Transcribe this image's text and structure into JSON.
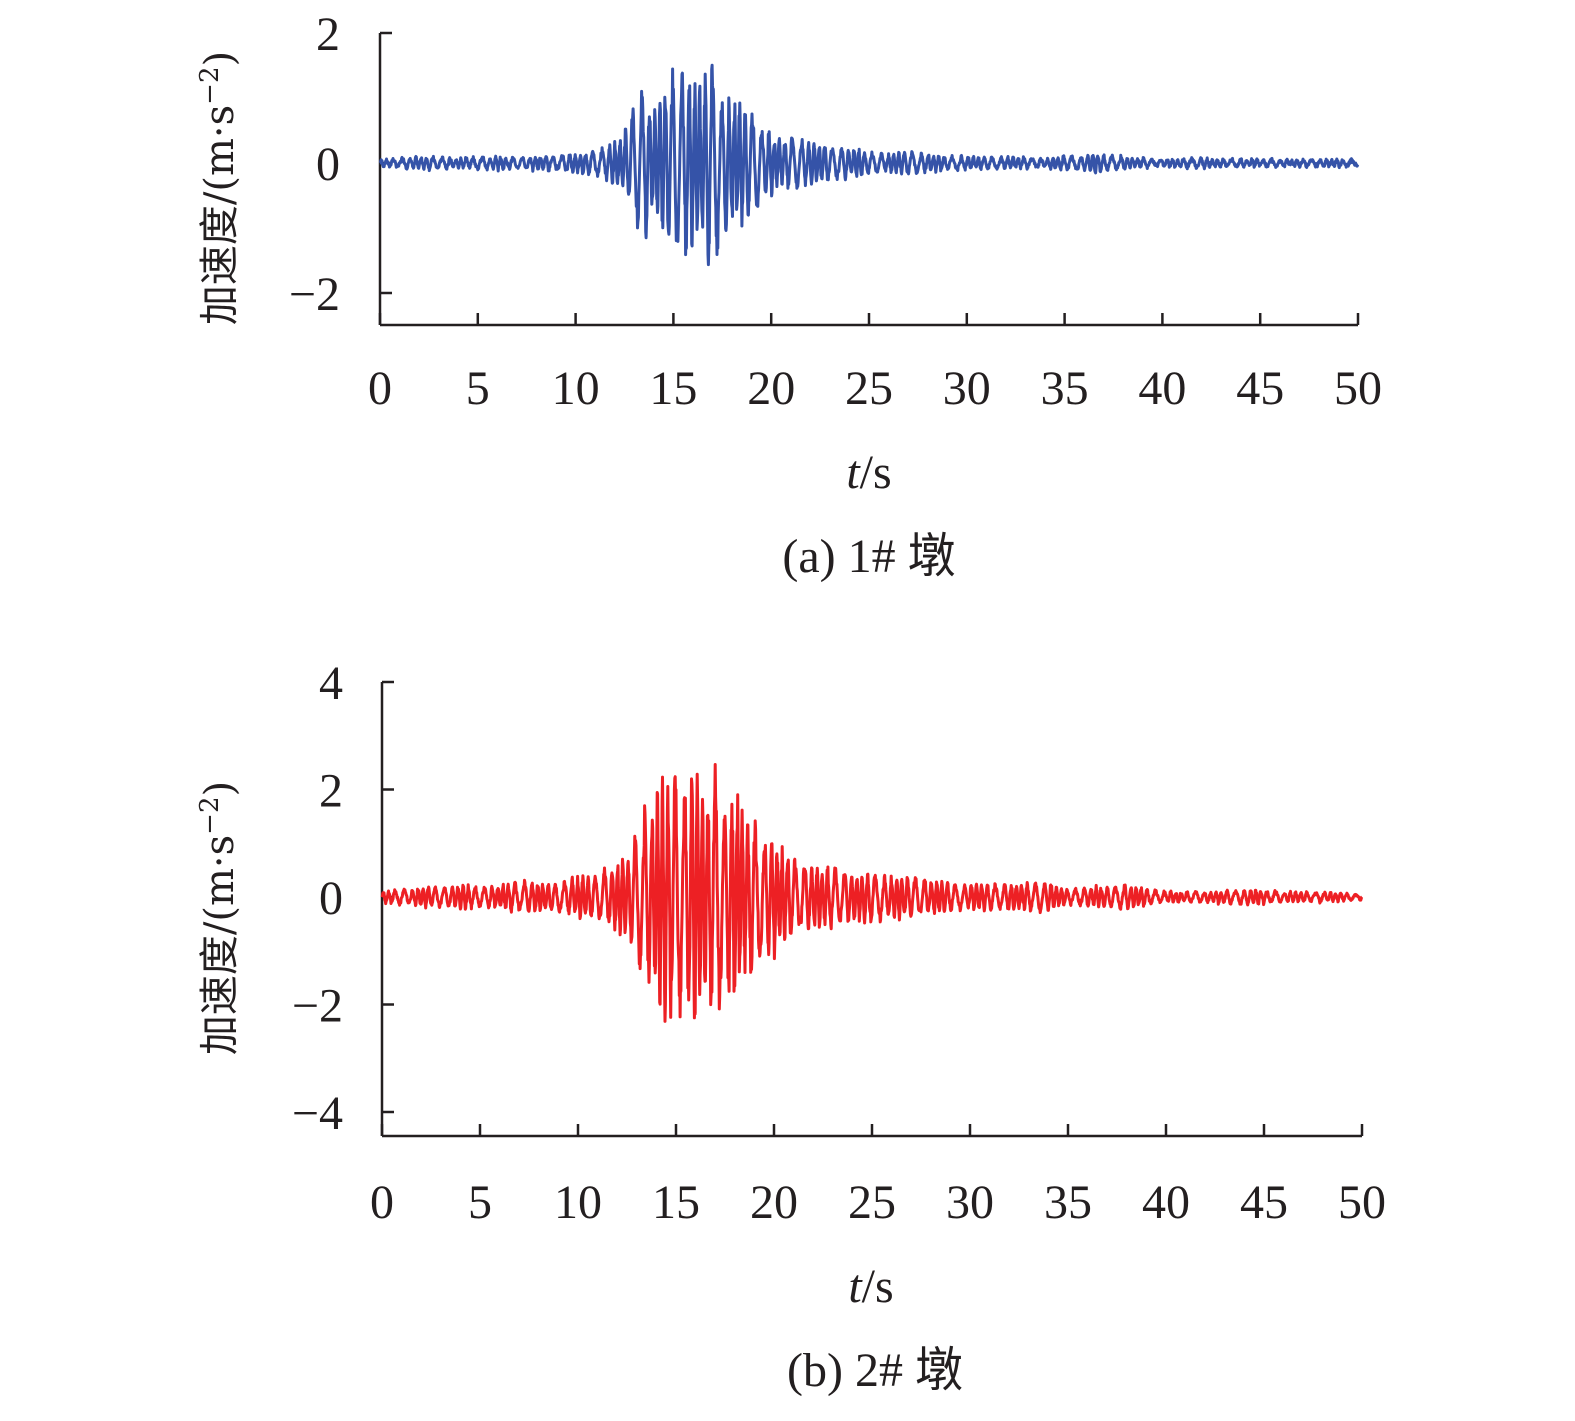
{
  "chart_data": [
    {
      "type": "line",
      "caption": "(a) 1# 墩",
      "ylabel_text": "加速度/(m·s",
      "ylabel_exp": "−2",
      "ylabel_close": ")",
      "xlabel_italic": "t",
      "xlabel_rest": "/s",
      "xlim": [
        0,
        50
      ],
      "ylim": [
        -2.5,
        2
      ],
      "xticks": [
        0,
        5,
        10,
        15,
        20,
        25,
        30,
        35,
        40,
        45,
        50
      ],
      "xtick_labels": [
        "0",
        "5",
        "10",
        "15",
        "20",
        "25",
        "30",
        "35",
        "40",
        "45",
        "50"
      ],
      "yticks": [
        -2,
        0,
        2
      ],
      "ytick_labels": [
        "−2",
        "0",
        "2"
      ],
      "color": "#3553a8",
      "grid": false,
      "series": [
        {
          "x": [
            0,
            1,
            2,
            3,
            4,
            5,
            6,
            7,
            8,
            9,
            10,
            11,
            12,
            12.5,
            13,
            13.5,
            14,
            14.5,
            15,
            15.5,
            16,
            16.5,
            17,
            17.5,
            18,
            18.5,
            19,
            19.5,
            20,
            20.5,
            21,
            22,
            23,
            24,
            25,
            26,
            27,
            28,
            29,
            30,
            32,
            34,
            35,
            36,
            36.5,
            37,
            38,
            40,
            42,
            44,
            46,
            48,
            50
          ],
          "y": [
            0.05,
            -0.08,
            0.1,
            -0.1,
            0.08,
            -0.1,
            0.1,
            -0.08,
            0.12,
            -0.12,
            0.15,
            -0.2,
            0.35,
            -0.5,
            1.0,
            -1.2,
            0.9,
            -1.1,
            1.6,
            -1.5,
            1.4,
            -1.3,
            1.85,
            -1.2,
            1.1,
            -1.0,
            0.9,
            -0.6,
            0.5,
            -0.4,
            0.45,
            -0.35,
            0.3,
            -0.25,
            0.2,
            -0.15,
            0.2,
            -0.15,
            0.12,
            -0.1,
            0.1,
            -0.08,
            0.12,
            -0.1,
            0.18,
            -0.12,
            0.1,
            -0.05,
            0.08,
            -0.06,
            0.06,
            -0.05,
            0.05
          ]
        }
      ]
    },
    {
      "type": "line",
      "caption": "(b) 2# 墩",
      "ylabel_text": "加速度/(m·s",
      "ylabel_exp": "−2",
      "ylabel_close": ")",
      "xlabel_italic": "t",
      "xlabel_rest": "/s",
      "xlim": [
        0,
        50
      ],
      "ylim": [
        -4.5,
        4
      ],
      "xticks": [
        0,
        5,
        10,
        15,
        20,
        25,
        30,
        35,
        40,
        45,
        50
      ],
      "xtick_labels": [
        "0",
        "5",
        "10",
        "15",
        "20",
        "25",
        "30",
        "35",
        "40",
        "45",
        "50"
      ],
      "yticks": [
        -4,
        -2,
        0,
        2,
        4
      ],
      "ytick_labels": [
        "−4",
        "−2",
        "0",
        "2",
        "4"
      ],
      "color": "#ed2024",
      "grid": false,
      "series": [
        {
          "x": [
            0,
            1,
            2,
            3,
            4,
            5,
            6,
            7,
            8,
            9,
            10,
            11,
            12,
            12.5,
            13,
            13.5,
            14,
            14.5,
            15,
            15.5,
            16,
            16.5,
            17,
            17.5,
            18,
            18.5,
            19,
            19.5,
            20,
            20.5,
            21,
            22,
            23,
            24,
            25,
            26,
            27,
            28,
            29,
            30,
            32,
            34,
            35,
            36,
            37,
            38,
            40,
            42,
            44,
            46,
            48,
            50
          ],
          "y": [
            0.1,
            -0.15,
            0.2,
            -0.2,
            0.25,
            -0.2,
            0.25,
            -0.3,
            0.3,
            -0.3,
            0.4,
            -0.5,
            0.7,
            -0.9,
            1.3,
            -1.8,
            2.0,
            -2.4,
            2.6,
            -2.4,
            2.7,
            -2.0,
            2.8,
            -1.8,
            2.5,
            -1.5,
            1.6,
            -1.2,
            1.2,
            -0.9,
            0.8,
            -0.6,
            0.6,
            -0.5,
            0.5,
            -0.4,
            0.45,
            -0.35,
            0.3,
            -0.25,
            0.25,
            -0.3,
            0.15,
            -0.2,
            0.2,
            -0.25,
            0.1,
            -0.1,
            0.15,
            -0.1,
            0.1,
            0.05
          ]
        }
      ]
    }
  ]
}
